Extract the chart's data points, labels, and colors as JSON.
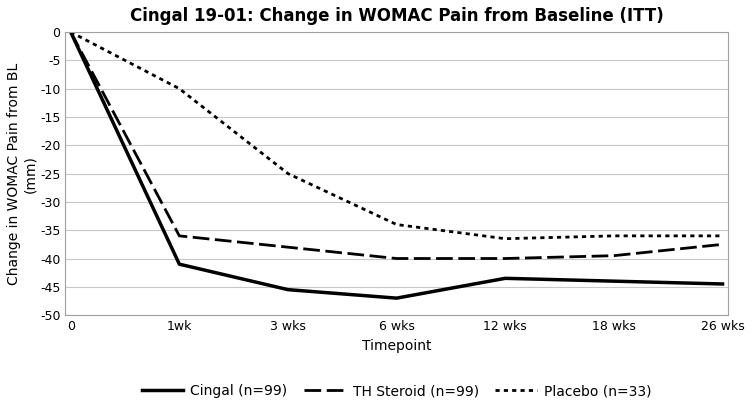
{
  "title": "Cingal 19-01: Change in WOMAC Pain from Baseline (ITT)",
  "xlabel": "Timepoint",
  "ylabel": "Change in WOMAC Pain from BL\n(mm)",
  "xlabels": [
    "0",
    "1wk",
    "3 wks",
    "6 wks",
    "12 wks",
    "18 wks",
    "26 wks"
  ],
  "xpositions": [
    0,
    1,
    2,
    3,
    4,
    5,
    6
  ],
  "ylim": [
    -50,
    0
  ],
  "yticks": [
    0,
    -5,
    -10,
    -15,
    -20,
    -25,
    -30,
    -35,
    -40,
    -45,
    -50
  ],
  "series": [
    {
      "label": "Cingal (n=99)",
      "values": [
        0,
        -41.0,
        -45.5,
        -47.0,
        -43.5,
        -44.0,
        -44.5
      ],
      "color": "#000000",
      "linestyle": "solid",
      "linewidth": 2.5
    },
    {
      "label": "TH Steroid (n=99)",
      "values": [
        0,
        -36.0,
        -38.0,
        -40.0,
        -40.0,
        -39.5,
        -37.5
      ],
      "color": "#000000",
      "linestyle": "dashed",
      "linewidth": 2.0
    },
    {
      "label": "Placebo (n=33)",
      "values": [
        0,
        -10.0,
        -25.0,
        -34.0,
        -36.5,
        -36.0,
        -36.0
      ],
      "color": "#000000",
      "linestyle": "dotted",
      "linewidth": 2.0
    }
  ],
  "background_color": "#ffffff",
  "grid_color": "#c8c8c8",
  "spine_color": "#a0a0a0",
  "title_fontsize": 12,
  "label_fontsize": 10,
  "tick_fontsize": 9,
  "legend_fontsize": 10
}
